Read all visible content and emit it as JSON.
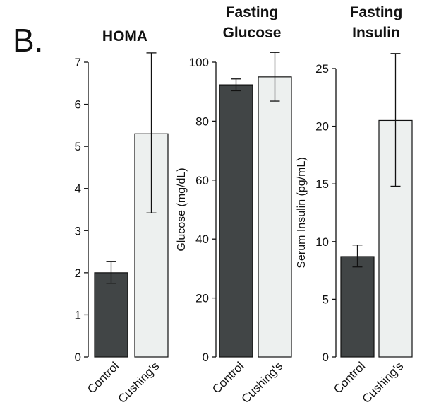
{
  "panel_label": "B.",
  "colors": {
    "control": "#414546",
    "cushings": "#edf0ef",
    "stroke": "#111111"
  },
  "chart_data": [
    {
      "type": "bar",
      "title_lines": [
        "HOMA"
      ],
      "ylabel": "",
      "categories": [
        "Control",
        "Cushing's"
      ],
      "values": [
        2.0,
        5.3
      ],
      "error_low": [
        1.75,
        3.42
      ],
      "error_high": [
        2.27,
        7.22
      ],
      "ylim": [
        0,
        7
      ],
      "yticks": [
        0,
        1,
        2,
        3,
        4,
        5,
        6,
        7
      ],
      "grid": false
    },
    {
      "type": "bar",
      "title_lines": [
        "Fasting",
        "Glucose"
      ],
      "ylabel": "Glucose (mg/dL)",
      "categories": [
        "Control",
        "Cushing's"
      ],
      "values": [
        92.3,
        95.0
      ],
      "error_low": [
        90.3,
        86.8
      ],
      "error_high": [
        94.3,
        103.3
      ],
      "ylim": [
        0,
        100
      ],
      "yticks": [
        0,
        20,
        40,
        60,
        80,
        100
      ],
      "grid": false
    },
    {
      "type": "bar",
      "title_lines": [
        "Fasting",
        "Insulin"
      ],
      "ylabel": "Serum Insulin (pg/mL)",
      "categories": [
        "Control",
        "Cushing's"
      ],
      "values": [
        8.7,
        20.5
      ],
      "error_low": [
        7.8,
        14.8
      ],
      "error_high": [
        9.7,
        26.3
      ],
      "ylim": [
        0,
        25
      ],
      "yticks": [
        0,
        5,
        10,
        15,
        20,
        25
      ],
      "grid": false
    }
  ]
}
